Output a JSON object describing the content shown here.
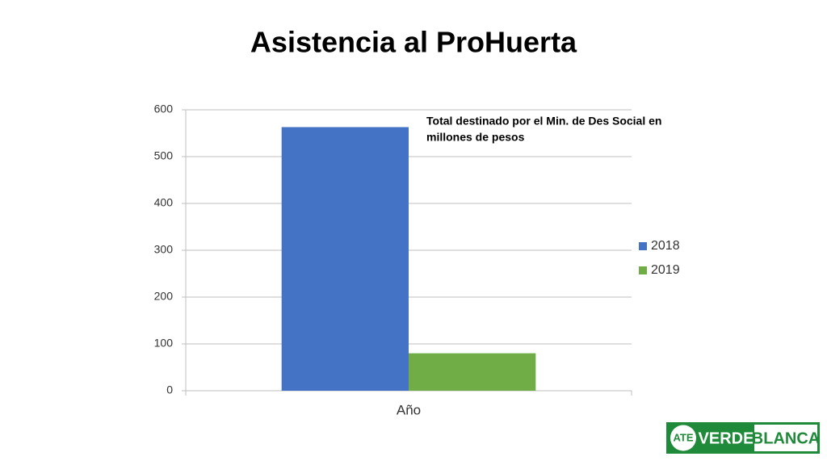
{
  "chart_data": {
    "type": "bar",
    "title": "Asistencia al ProHuerta",
    "annotation": [
      "Total destinado por el Min. de Des Social en",
      "millones de pesos"
    ],
    "categories": [
      "Año"
    ],
    "series": [
      {
        "name": "2018",
        "color": "#4472c4",
        "values": [
          563
        ]
      },
      {
        "name": "2019",
        "color": "#70ad47",
        "values": [
          80
        ]
      }
    ],
    "ylim": [
      0,
      600
    ],
    "yticks": [
      0,
      100,
      200,
      300,
      400,
      500,
      600
    ],
    "grid": true,
    "legend": "right"
  },
  "logo": {
    "emblem": "ATE",
    "left": "VERDE",
    "right": "BLANCA"
  }
}
